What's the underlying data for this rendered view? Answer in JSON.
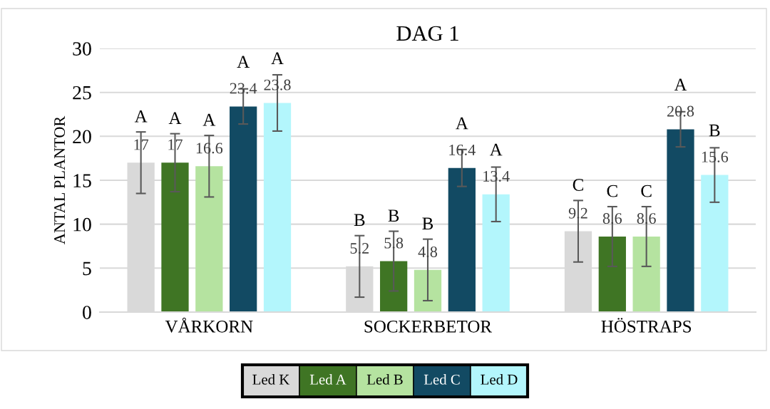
{
  "chart_data": {
    "type": "bar",
    "title": "DAG 1",
    "ylabel": "ANTAL PLANTOR",
    "categories": [
      "VÅRKORN",
      "SOCKERBETOR",
      "HÖSTRAPS"
    ],
    "series": [
      {
        "name": "Led K",
        "color": "#d9d9d9",
        "values": [
          17,
          5.2,
          9.2
        ],
        "errors": [
          3.5,
          3.5,
          3.5
        ]
      },
      {
        "name": "Led A",
        "color": "#3f7524",
        "values": [
          17,
          5.8,
          8.6
        ],
        "errors": [
          3.3,
          3.4,
          3.4
        ]
      },
      {
        "name": "Led B",
        "color": "#b5e3a0",
        "values": [
          16.6,
          4.8,
          8.6
        ],
        "errors": [
          3.5,
          3.5,
          3.4
        ]
      },
      {
        "name": "Led C",
        "color": "#124a63",
        "values": [
          23.4,
          16.4,
          20.8
        ],
        "errors": [
          2.0,
          2.1,
          2.0
        ]
      },
      {
        "name": "Led D",
        "color": "#b3f6fc",
        "values": [
          23.8,
          13.4,
          15.6
        ],
        "errors": [
          3.2,
          3.1,
          3.1
        ]
      }
    ],
    "annotations": [
      "A",
      "A",
      "A",
      "A",
      "A",
      "B",
      "B",
      "B",
      "A",
      "A",
      "C",
      "C",
      "C",
      "A",
      "B"
    ],
    "ylim": [
      0,
      30
    ],
    "yticks": [
      0,
      5,
      10,
      15,
      20,
      25,
      30
    ],
    "grid": "y",
    "legend": "bottom",
    "data_labels": true
  }
}
